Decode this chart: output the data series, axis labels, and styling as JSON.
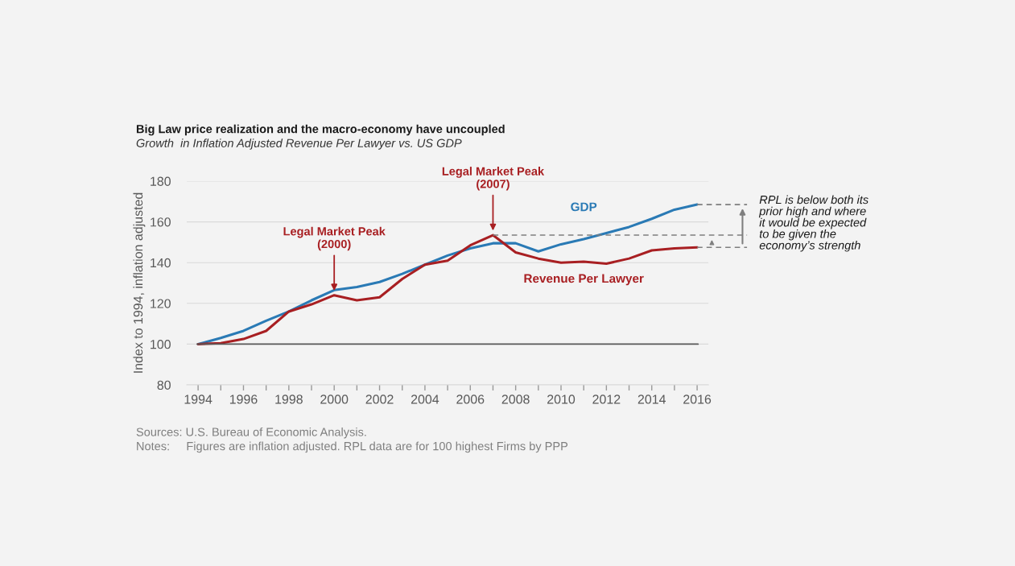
{
  "chart_data": {
    "type": "line",
    "title": "Big Law price realization and the macro-economy have uncoupled",
    "subtitle": "Growth  in Inflation Adjusted Revenue Per Lawyer vs. US GDP",
    "ylabel": "Index to 1994, inflation adjusted",
    "x": [
      1994,
      1995,
      1996,
      1997,
      1998,
      1999,
      2000,
      2001,
      2002,
      2003,
      2004,
      2005,
      2006,
      2007,
      2008,
      2009,
      2010,
      2011,
      2012,
      2013,
      2014,
      2015,
      2016
    ],
    "series": [
      {
        "name": "GDP",
        "color": "#2a7ab5",
        "values": [
          100,
          103,
          106.5,
          111.5,
          116,
          121.5,
          126.5,
          128,
          130.5,
          134.5,
          139,
          143.5,
          147,
          149.5,
          149.5,
          145.5,
          149,
          151.5,
          154.5,
          157.5,
          161.5,
          166,
          168.5
        ]
      },
      {
        "name": "Revenue Per Lawyer",
        "color": "#a81f22",
        "values": [
          100,
          100.5,
          102.5,
          106.5,
          116,
          119.5,
          124,
          121.5,
          123,
          132,
          139,
          141,
          148.5,
          153.5,
          145,
          142,
          140,
          140.5,
          139.5,
          142,
          146,
          147,
          147.5
        ]
      }
    ],
    "xlim": [
      1993.5,
      2016.5
    ],
    "xticks": [
      1994,
      {
        "value": 1995,
        "label": null
      },
      1996,
      {
        "value": 1997,
        "label": null
      },
      1998,
      {
        "value": 1999,
        "label": null
      },
      2000,
      {
        "value": 2001,
        "label": null
      },
      2002,
      {
        "value": 2003,
        "label": null
      },
      2004,
      {
        "value": 2005,
        "label": null
      },
      2006,
      {
        "value": 2007,
        "label": null
      },
      2008,
      {
        "value": 2009,
        "label": null
      },
      2010,
      {
        "value": 2011,
        "label": null
      },
      2012,
      {
        "value": 2013,
        "label": null
      },
      2014,
      {
        "value": 2015,
        "label": null
      },
      2016
    ],
    "ylim": [
      80,
      180
    ],
    "yticks": [
      80,
      100,
      120,
      140,
      160,
      180
    ],
    "grid": "y",
    "legend": false,
    "line_style": "solid",
    "marker": "none",
    "ref_lines": [
      {
        "axis": "y",
        "value": 100,
        "color": "#595959",
        "line_style": "solid"
      },
      {
        "axis": "y",
        "value": 153.5,
        "color": "#7f7f7f",
        "line_style": "dashed"
      }
    ],
    "annotations": [
      {
        "text": "Legal Market Peak\n(2000)",
        "x": 2000,
        "y": 124
      },
      {
        "text": "Legal Market Peak\n(2007)",
        "x": 2007,
        "y": 153.5
      },
      {
        "text": "RPL is below both its\nprior high and where\nit would be expected\nto be given the\neconomy’s strength",
        "x": 2016,
        "y": 147.5
      },
      "Sources: U.S. Bureau of Economic Analysis.",
      "Notes:     Figures are inflation adjusted. RPL data are for 100 highest Firms by PPP"
    ]
  }
}
